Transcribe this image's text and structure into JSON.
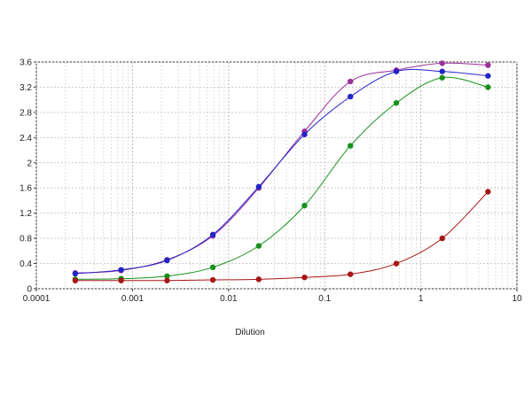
{
  "chart_data": {
    "type": "scatter",
    "xlabel": "Dilution",
    "xscale": "log",
    "grid": true,
    "curve": "smooth",
    "x": [
      0.000254,
      0.000762,
      0.00229,
      0.00686,
      0.0206,
      0.0617,
      0.185,
      0.556,
      1.67,
      5
    ],
    "xlim": [
      0.0001,
      10
    ],
    "xticks": [
      0.0001,
      0.001,
      0.01,
      0.1,
      1,
      10
    ],
    "ylim": [
      0,
      3.6
    ],
    "yticks": [
      0,
      0.4,
      0.8,
      1.2,
      1.6,
      2,
      2.4,
      2.8,
      3.2,
      3.6
    ],
    "series": [
      {
        "color": "#9b2f9b",
        "values": [
          0.25,
          0.29,
          0.46,
          0.84,
          1.6,
          2.5,
          3.29,
          3.47,
          3.58,
          3.55
        ]
      },
      {
        "color": "#2323c8",
        "values": [
          0.24,
          0.3,
          0.45,
          0.86,
          1.62,
          2.45,
          3.05,
          3.45,
          3.45,
          3.38
        ]
      },
      {
        "color": "#17911a",
        "values": [
          0.15,
          0.16,
          0.2,
          0.34,
          0.68,
          1.32,
          2.27,
          2.95,
          3.35,
          3.2
        ]
      },
      {
        "color": "#a81616",
        "values": [
          0.13,
          0.13,
          0.13,
          0.14,
          0.15,
          0.18,
          0.23,
          0.4,
          0.8,
          1.54
        ]
      }
    ]
  }
}
